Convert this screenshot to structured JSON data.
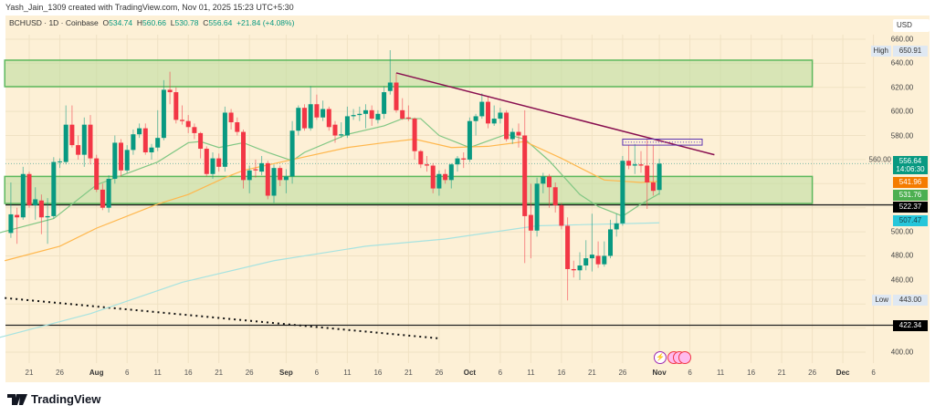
{
  "credit": "Yash_Jain_1309 created with TradingView.com, Nov 01, 2025 15:23 UTC+5:30",
  "legend": {
    "symbol": "BCHUSD · 1D · Coinbase",
    "o_label": "O",
    "o": "534.74",
    "h_label": "H",
    "h": "560.66",
    "l_label": "L",
    "l": "530.78",
    "c_label": "C",
    "c": "556.64",
    "change": "+21.84 (+4.08%)"
  },
  "currency": "USD",
  "price_tags": {
    "last": "556.64",
    "countdown": "14:06:30",
    "ma_orange": "541.96",
    "ma_green": "531.76",
    "level_1": "522.37",
    "ma_cyan": "507.47",
    "level_2": "422.34",
    "high_label": "High",
    "high": "650.91",
    "low_label": "Low",
    "low": "443.00"
  },
  "footer": {
    "brand": "TradingView"
  },
  "colors": {
    "up": "#089981",
    "down": "#f23645",
    "ma_fast": "#81c784",
    "ma_mid": "#ffb74d",
    "ma_slow": "#a7e3e0",
    "zone": "#b9dc9c",
    "trendline": "#880e4f",
    "background": "#fdf0d6"
  },
  "chart_data": {
    "type": "candlestick",
    "symbol": "BCHUSD",
    "interval": "1D",
    "ylim": [
      390,
      668
    ],
    "grid": true,
    "y_ticks": [
      660,
      640,
      620,
      600,
      580,
      560,
      500,
      480,
      460,
      400
    ],
    "x_ticks": [
      {
        "label": "21",
        "date": "2025-07-21"
      },
      {
        "label": "26",
        "date": "2025-07-26"
      },
      {
        "label": "Aug",
        "date": "2025-08-01",
        "month": true
      },
      {
        "label": "6",
        "date": "2025-08-06"
      },
      {
        "label": "11",
        "date": "2025-08-11"
      },
      {
        "label": "16",
        "date": "2025-08-16"
      },
      {
        "label": "21",
        "date": "2025-08-21"
      },
      {
        "label": "26",
        "date": "2025-08-26"
      },
      {
        "label": "Sep",
        "date": "2025-09-01",
        "month": true
      },
      {
        "label": "6",
        "date": "2025-09-06"
      },
      {
        "label": "11",
        "date": "2025-09-11"
      },
      {
        "label": "16",
        "date": "2025-09-16"
      },
      {
        "label": "21",
        "date": "2025-09-21"
      },
      {
        "label": "26",
        "date": "2025-09-26"
      },
      {
        "label": "Oct",
        "date": "2025-10-01",
        "month": true
      },
      {
        "label": "6",
        "date": "2025-10-06"
      },
      {
        "label": "11",
        "date": "2025-10-11"
      },
      {
        "label": "16",
        "date": "2025-10-16"
      },
      {
        "label": "21",
        "date": "2025-10-21"
      },
      {
        "label": "26",
        "date": "2025-10-26"
      },
      {
        "label": "Nov",
        "date": "2025-11-01",
        "month": true
      },
      {
        "label": "6",
        "date": "2025-11-06"
      },
      {
        "label": "11",
        "date": "2025-11-11"
      },
      {
        "label": "16",
        "date": "2025-11-16"
      },
      {
        "label": "21",
        "date": "2025-11-21"
      },
      {
        "label": "26",
        "date": "2025-11-26"
      },
      {
        "label": "Dec",
        "date": "2025-12-01",
        "month": true
      },
      {
        "label": "6",
        "date": "2025-12-06"
      }
    ],
    "candles_columns": [
      "date",
      "open",
      "high",
      "low",
      "close"
    ],
    "candles": [
      [
        "2025-07-18",
        499,
        541,
        495,
        514.5
      ],
      [
        "2025-07-19",
        514,
        520,
        490,
        512
      ],
      [
        "2025-07-20",
        512,
        554,
        510,
        548
      ],
      [
        "2025-07-21",
        548,
        550,
        520,
        522
      ],
      [
        "2025-07-22",
        522,
        537,
        510,
        527
      ],
      [
        "2025-07-23",
        526,
        531,
        498,
        512
      ],
      [
        "2025-07-24",
        512,
        528,
        490,
        513
      ],
      [
        "2025-07-25",
        513,
        562,
        511,
        558
      ],
      [
        "2025-07-26",
        558,
        561,
        553,
        558.5
      ],
      [
        "2025-07-27",
        558,
        605,
        556,
        589
      ],
      [
        "2025-07-28",
        589,
        605,
        570,
        572
      ],
      [
        "2025-07-29",
        572,
        580,
        560,
        564
      ],
      [
        "2025-07-30",
        564,
        595,
        554,
        589
      ],
      [
        "2025-07-31",
        589,
        597,
        556,
        561
      ],
      [
        "2025-08-01",
        561,
        564,
        533,
        535
      ],
      [
        "2025-08-02",
        535,
        540,
        518,
        520
      ],
      [
        "2025-08-03",
        520,
        547,
        516,
        544
      ],
      [
        "2025-08-04",
        544,
        580,
        540,
        574
      ],
      [
        "2025-08-05",
        574,
        577,
        546,
        551
      ],
      [
        "2025-08-06",
        551,
        572,
        549,
        568
      ],
      [
        "2025-08-07",
        568,
        585,
        564,
        581
      ],
      [
        "2025-08-08",
        581,
        590,
        578,
        586
      ],
      [
        "2025-08-09",
        586,
        590,
        564,
        566
      ],
      [
        "2025-08-10",
        566,
        573,
        560,
        570
      ],
      [
        "2025-08-11",
        570,
        601,
        567,
        578
      ],
      [
        "2025-08-12",
        578,
        626,
        576,
        618
      ],
      [
        "2025-08-13",
        618,
        633,
        606,
        616
      ],
      [
        "2025-08-14",
        616,
        620,
        590,
        593
      ],
      [
        "2025-08-15",
        593,
        605,
        589,
        592
      ],
      [
        "2025-08-16",
        592,
        597,
        582,
        587
      ],
      [
        "2025-08-17",
        587,
        590,
        577,
        582
      ],
      [
        "2025-08-18",
        582,
        583,
        561,
        569
      ],
      [
        "2025-08-19",
        569,
        571,
        546,
        548
      ],
      [
        "2025-08-20",
        548,
        566,
        544,
        561
      ],
      [
        "2025-08-21",
        561,
        565,
        550,
        554
      ],
      [
        "2025-08-22",
        554,
        604,
        550,
        599
      ],
      [
        "2025-08-23",
        599,
        602,
        585,
        591
      ],
      [
        "2025-08-24",
        591,
        595,
        580,
        583
      ],
      [
        "2025-08-25",
        583,
        585,
        536,
        543
      ],
      [
        "2025-08-26",
        543,
        555,
        532,
        551
      ],
      [
        "2025-08-27",
        552,
        560,
        545,
        551
      ],
      [
        "2025-08-28",
        550,
        563,
        547,
        557
      ],
      [
        "2025-08-29",
        557,
        559,
        527,
        530
      ],
      [
        "2025-08-30",
        530,
        556,
        524,
        553
      ],
      [
        "2025-08-31",
        553,
        555,
        538,
        543
      ],
      [
        "2025-09-01",
        543,
        552,
        532,
        546
      ],
      [
        "2025-09-02",
        546,
        592,
        540,
        584
      ],
      [
        "2025-09-03",
        584,
        605,
        580,
        603
      ],
      [
        "2025-09-04",
        603,
        606,
        584,
        586
      ],
      [
        "2025-09-05",
        586,
        621,
        584,
        606
      ],
      [
        "2025-09-06",
        606,
        614,
        593,
        595
      ],
      [
        "2025-09-07",
        595,
        609,
        592,
        602
      ],
      [
        "2025-09-08",
        602,
        604,
        584,
        587
      ],
      [
        "2025-09-09",
        589,
        592,
        574,
        580
      ],
      [
        "2025-09-10",
        580,
        591,
        578,
        581
      ],
      [
        "2025-09-11",
        580,
        604,
        578,
        596
      ],
      [
        "2025-09-12",
        596,
        602,
        593,
        597
      ],
      [
        "2025-09-13",
        597,
        604,
        592,
        598
      ],
      [
        "2025-09-14",
        598,
        606,
        586,
        601
      ],
      [
        "2025-09-15",
        601,
        605,
        588,
        594
      ],
      [
        "2025-09-16",
        593,
        601,
        590,
        598
      ],
      [
        "2025-09-17",
        598,
        621,
        594,
        616
      ],
      [
        "2025-09-18",
        617,
        650.91,
        614,
        624
      ],
      [
        "2025-09-19",
        624,
        632,
        599,
        601
      ],
      [
        "2025-09-20",
        601,
        611,
        593,
        594
      ],
      [
        "2025-09-21",
        595,
        605,
        592,
        594
      ],
      [
        "2025-09-22",
        594,
        595,
        560,
        567
      ],
      [
        "2025-09-23",
        567,
        568,
        553,
        556
      ],
      [
        "2025-09-24",
        556,
        563,
        550,
        555
      ],
      [
        "2025-09-25",
        555,
        557,
        532,
        536
      ],
      [
        "2025-09-26",
        536,
        551,
        530,
        548
      ],
      [
        "2025-09-27",
        548,
        552,
        540,
        543
      ],
      [
        "2025-09-28",
        543,
        557,
        536,
        556
      ],
      [
        "2025-09-29",
        556,
        563,
        550,
        561
      ],
      [
        "2025-09-30",
        561,
        566,
        553,
        560
      ],
      [
        "2025-10-01",
        560,
        595,
        558,
        592
      ],
      [
        "2025-10-02",
        592,
        598,
        580,
        596
      ],
      [
        "2025-10-03",
        596,
        615,
        594,
        608
      ],
      [
        "2025-10-04",
        608,
        612,
        586,
        590
      ],
      [
        "2025-10-05",
        590,
        605,
        588,
        594
      ],
      [
        "2025-10-06",
        594,
        603,
        590,
        599
      ],
      [
        "2025-10-07",
        599,
        601,
        575,
        577
      ],
      [
        "2025-10-08",
        577,
        586,
        573,
        583
      ],
      [
        "2025-10-09",
        583,
        590,
        570,
        580
      ],
      [
        "2025-10-10",
        580,
        601,
        474,
        513
      ],
      [
        "2025-10-11",
        514,
        540,
        478,
        501
      ],
      [
        "2025-10-12",
        501,
        545,
        496,
        540
      ],
      [
        "2025-10-13",
        540,
        549,
        532,
        546
      ],
      [
        "2025-10-14",
        546,
        548,
        520,
        537
      ],
      [
        "2025-10-15",
        537,
        541,
        516,
        522
      ],
      [
        "2025-10-16",
        522,
        524,
        502,
        505
      ],
      [
        "2025-10-17",
        505,
        512,
        443,
        469
      ],
      [
        "2025-10-18",
        469,
        476,
        462,
        468
      ],
      [
        "2025-10-19",
        468,
        483,
        460,
        472
      ],
      [
        "2025-10-20",
        472,
        493,
        468,
        478
      ],
      [
        "2025-10-21",
        478,
        515,
        467,
        481
      ],
      [
        "2025-10-22",
        480,
        492,
        470,
        473
      ],
      [
        "2025-10-23",
        473,
        492,
        471,
        480
      ],
      [
        "2025-10-24",
        480,
        510,
        478,
        502
      ],
      [
        "2025-10-25",
        502,
        515,
        496,
        507
      ],
      [
        "2025-10-26",
        507,
        563,
        505,
        559
      ],
      [
        "2025-10-27",
        559,
        572,
        552,
        555
      ],
      [
        "2025-10-28",
        555,
        573,
        548,
        556
      ],
      [
        "2025-10-29",
        556,
        567,
        549,
        555
      ],
      [
        "2025-10-30",
        555,
        577,
        519,
        541
      ],
      [
        "2025-10-31",
        541,
        572,
        530,
        534
      ],
      [
        "2025-11-01",
        534.74,
        560.66,
        530.78,
        556.64
      ]
    ],
    "moving_averages": [
      {
        "color": "#81c784",
        "points": [
          [
            "2025-07-16",
            499
          ],
          [
            "2025-07-25",
            511
          ],
          [
            "2025-08-01",
            539
          ],
          [
            "2025-08-11",
            558
          ],
          [
            "2025-08-16",
            574
          ],
          [
            "2025-08-18",
            575
          ],
          [
            "2025-08-21",
            570
          ],
          [
            "2025-08-25",
            574
          ],
          [
            "2025-08-29",
            566
          ],
          [
            "2025-09-02",
            559
          ],
          [
            "2025-09-04",
            566
          ],
          [
            "2025-09-11",
            581
          ],
          [
            "2025-09-17",
            588
          ],
          [
            "2025-09-20",
            594
          ],
          [
            "2025-09-23",
            594
          ],
          [
            "2025-09-26",
            580
          ],
          [
            "2025-09-29",
            574
          ],
          [
            "2025-10-01",
            570
          ],
          [
            "2025-10-07",
            581
          ],
          [
            "2025-10-10",
            577
          ],
          [
            "2025-10-14",
            559
          ],
          [
            "2025-10-19",
            531
          ],
          [
            "2025-10-22",
            521
          ],
          [
            "2025-10-26",
            513
          ],
          [
            "2025-10-29",
            523
          ],
          [
            "2025-11-01",
            531.76
          ]
        ]
      },
      {
        "color": "#ffb74d",
        "points": [
          [
            "2025-07-17",
            476
          ],
          [
            "2025-07-26",
            488
          ],
          [
            "2025-08-01",
            503
          ],
          [
            "2025-08-11",
            523
          ],
          [
            "2025-08-16",
            531
          ],
          [
            "2025-08-22",
            545
          ],
          [
            "2025-08-25",
            551
          ],
          [
            "2025-09-02",
            560
          ],
          [
            "2025-09-11",
            570
          ],
          [
            "2025-09-17",
            574
          ],
          [
            "2025-09-22",
            577
          ],
          [
            "2025-09-28",
            570
          ],
          [
            "2025-10-04",
            571
          ],
          [
            "2025-10-10",
            575
          ],
          [
            "2025-10-16",
            561
          ],
          [
            "2025-10-23",
            543
          ],
          [
            "2025-10-29",
            541
          ],
          [
            "2025-11-01",
            541.96
          ]
        ]
      },
      {
        "color": "#a7e3e0",
        "points": [
          [
            "2025-07-16",
            412
          ],
          [
            "2025-07-31",
            432
          ],
          [
            "2025-08-15",
            458
          ],
          [
            "2025-08-30",
            476
          ],
          [
            "2025-09-14",
            488
          ],
          [
            "2025-09-27",
            494
          ],
          [
            "2025-10-12",
            505
          ],
          [
            "2025-11-01",
            507.47
          ]
        ]
      }
    ],
    "annotations": {
      "zones": [
        {
          "from": "2025-07-17",
          "to": "2025-11-26",
          "low": 620.6,
          "high": 642.6
        },
        {
          "from": "2025-07-17",
          "to": "2025-11-26",
          "low": 523.5,
          "high": 546
        }
      ],
      "horizontal_lines": [
        522.37,
        422.34
      ],
      "trendline": {
        "from": [
          "2025-09-19",
          632
        ],
        "to": [
          "2025-11-10",
          564
        ]
      },
      "dotted_line": {
        "from": [
          "2025-07-17",
          445
        ],
        "to": [
          "2025-09-26",
          411.4
        ]
      },
      "resistance_box": {
        "from": "2025-10-26",
        "to": "2025-11-08",
        "low": 572,
        "high": 577
      },
      "current_price_line": 556.64
    }
  }
}
